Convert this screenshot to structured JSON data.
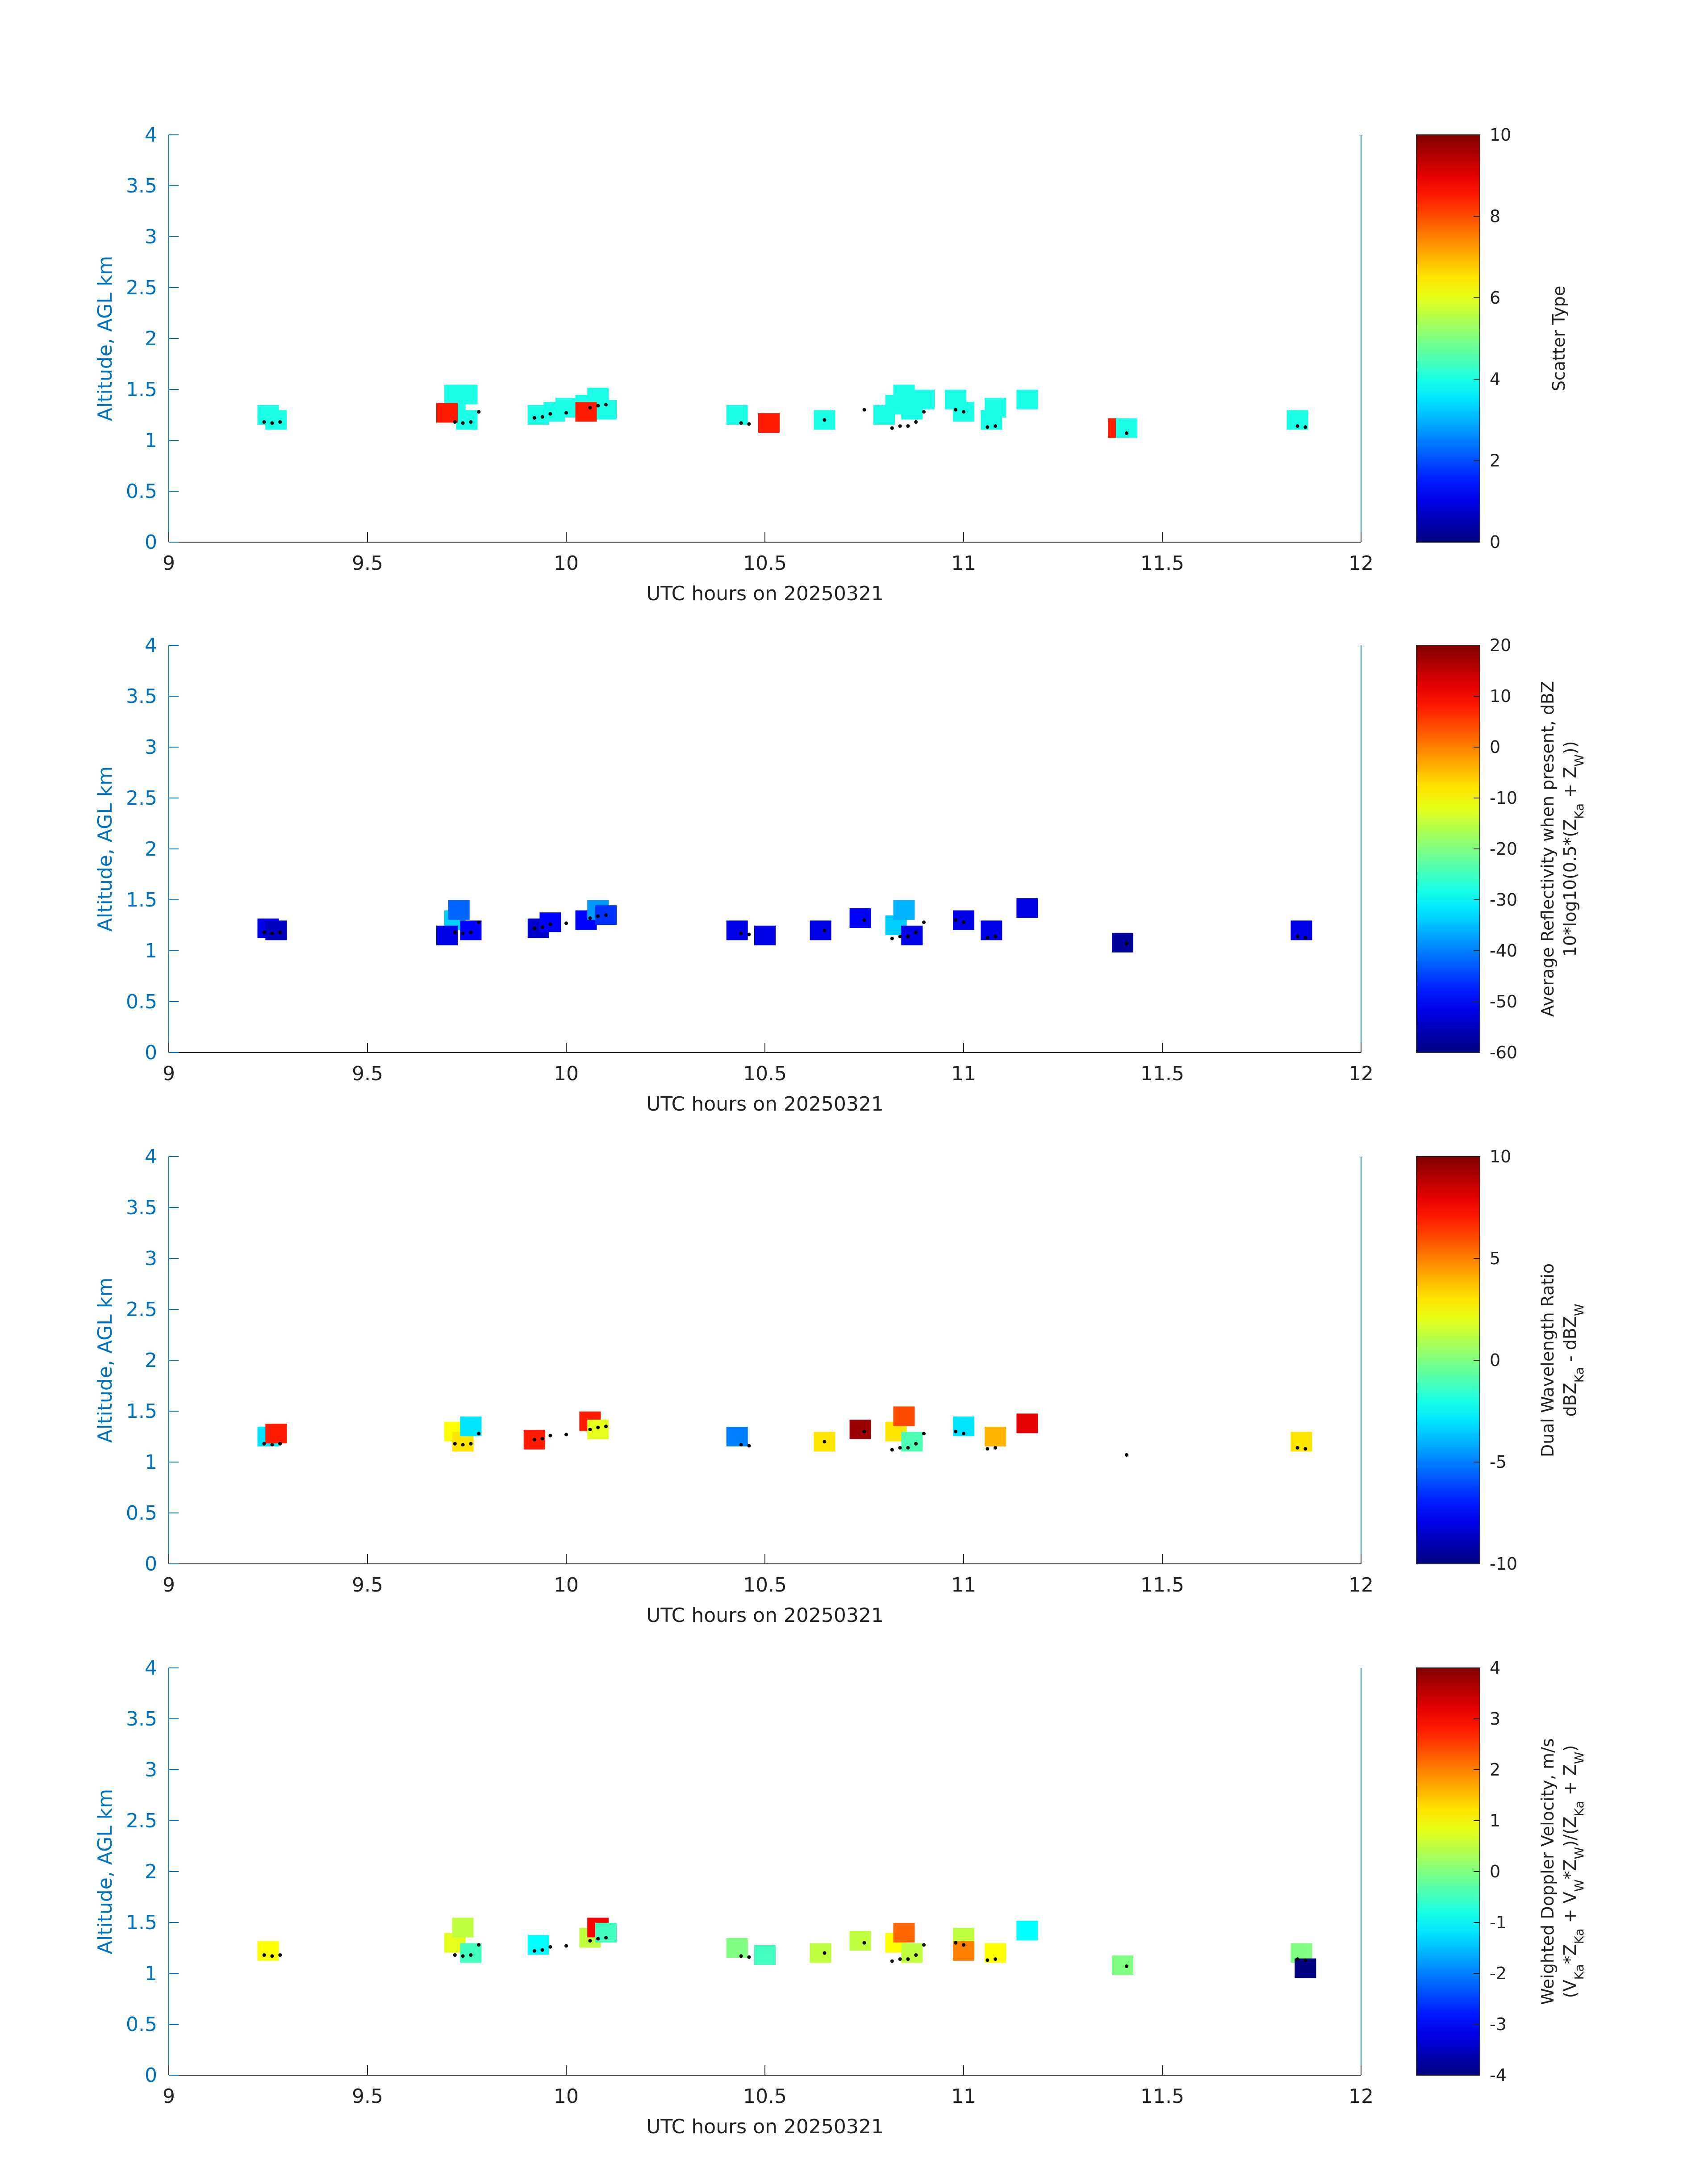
{
  "chart_data": [
    {
      "type": "heatmap",
      "xlabel": "UTC hours on 20250321",
      "ylabel": "Altitude, AGL km",
      "xlim": [
        9,
        12
      ],
      "ylim": [
        0,
        4
      ],
      "xticks": [
        "9",
        "9.5",
        "10",
        "10.5",
        "11",
        "11.5",
        "12"
      ],
      "yticks": [
        "0",
        "0.5",
        "1",
        "1.5",
        "2",
        "2.5",
        "3",
        "3.5",
        "4"
      ],
      "colorbar": {
        "label_lines": [
          "Scatter Type"
        ],
        "range": [
          0,
          10
        ],
        "ticks": [
          "0",
          "2",
          "4",
          "6",
          "8",
          "10"
        ],
        "colormap": "jet"
      },
      "cells": [
        [
          9.25,
          1.25,
          4
        ],
        [
          9.27,
          1.2,
          4
        ],
        [
          9.72,
          1.45,
          4
        ],
        [
          9.72,
          1.3,
          4
        ],
        [
          9.75,
          1.45,
          4
        ],
        [
          9.75,
          1.2,
          4
        ],
        [
          9.7,
          1.27,
          8.5
        ],
        [
          9.93,
          1.25,
          4
        ],
        [
          9.97,
          1.28,
          4
        ],
        [
          10.0,
          1.32,
          4
        ],
        [
          10.05,
          1.35,
          4
        ],
        [
          10.08,
          1.42,
          4
        ],
        [
          10.1,
          1.3,
          4
        ],
        [
          10.05,
          1.28,
          8.5
        ],
        [
          10.43,
          1.25,
          4
        ],
        [
          10.51,
          1.17,
          8.5
        ],
        [
          10.65,
          1.2,
          4
        ],
        [
          10.8,
          1.25,
          4
        ],
        [
          10.83,
          1.35,
          4
        ],
        [
          10.85,
          1.45,
          4
        ],
        [
          10.87,
          1.3,
          4
        ],
        [
          10.9,
          1.4,
          4
        ],
        [
          10.98,
          1.4,
          4
        ],
        [
          11.0,
          1.28,
          4
        ],
        [
          11.07,
          1.2,
          4
        ],
        [
          11.08,
          1.32,
          4
        ],
        [
          11.16,
          1.4,
          4
        ],
        [
          11.39,
          1.12,
          8.5
        ],
        [
          11.41,
          1.12,
          4
        ],
        [
          11.84,
          1.2,
          4
        ]
      ],
      "annotations": "black dot markers near 1.1–1.4 km"
    },
    {
      "type": "heatmap",
      "xlabel": "UTC hours on 20250321",
      "ylabel": "Altitude, AGL km",
      "xlim": [
        9,
        12
      ],
      "ylim": [
        0,
        4
      ],
      "xticks": [
        "9",
        "9.5",
        "10",
        "10.5",
        "11",
        "11.5",
        "12"
      ],
      "yticks": [
        "0",
        "0.5",
        "1",
        "1.5",
        "2",
        "2.5",
        "3",
        "3.5",
        "4"
      ],
      "colorbar": {
        "label_lines": [
          "Average Reflectivity when present, dBZ",
          "10*log10(0.5*(Z_Ka + Z_W))"
        ],
        "range": [
          -60,
          20
        ],
        "ticks": [
          "-60",
          "-50",
          "-40",
          "-30",
          "-20",
          "-10",
          "0",
          "10",
          "20"
        ],
        "colormap": "jet"
      },
      "cells": [
        [
          9.25,
          1.22,
          -52
        ],
        [
          9.27,
          1.2,
          -55
        ],
        [
          9.72,
          1.3,
          -34
        ],
        [
          9.73,
          1.4,
          -42
        ],
        [
          9.7,
          1.15,
          -52
        ],
        [
          9.76,
          1.2,
          -50
        ],
        [
          9.93,
          1.22,
          -54
        ],
        [
          9.96,
          1.28,
          -50
        ],
        [
          10.05,
          1.3,
          -50
        ],
        [
          10.08,
          1.4,
          -38
        ],
        [
          10.1,
          1.35,
          -46
        ],
        [
          10.43,
          1.2,
          -52
        ],
        [
          10.5,
          1.15,
          -52
        ],
        [
          10.64,
          1.2,
          -52
        ],
        [
          10.74,
          1.32,
          -50
        ],
        [
          10.83,
          1.25,
          -34
        ],
        [
          10.85,
          1.4,
          -36
        ],
        [
          10.87,
          1.15,
          -52
        ],
        [
          11.0,
          1.3,
          -52
        ],
        [
          11.07,
          1.2,
          -52
        ],
        [
          11.16,
          1.42,
          -52
        ],
        [
          11.4,
          1.08,
          -58
        ],
        [
          11.85,
          1.2,
          -52
        ]
      ],
      "annotations": "black dot markers near 1.1–1.4 km"
    },
    {
      "type": "heatmap",
      "xlabel": "UTC hours on 20250321",
      "ylabel": "Altitude, AGL km",
      "xlim": [
        9,
        12
      ],
      "ylim": [
        0,
        4
      ],
      "xticks": [
        "9",
        "9.5",
        "10",
        "10.5",
        "11",
        "11.5",
        "12"
      ],
      "yticks": [
        "0",
        "0.5",
        "1",
        "1.5",
        "2",
        "2.5",
        "3",
        "3.5",
        "4"
      ],
      "colorbar": {
        "label_lines": [
          "Dual Wavelength Ratio",
          "dBZ_Ka - dBZ_W"
        ],
        "range": [
          -10,
          10
        ],
        "ticks": [
          "-10",
          "-5",
          "0",
          "5",
          "10"
        ],
        "colormap": "jet"
      },
      "cells": [
        [
          9.25,
          1.25,
          -3
        ],
        [
          9.27,
          1.28,
          7
        ],
        [
          9.72,
          1.3,
          2.5
        ],
        [
          9.74,
          1.2,
          3
        ],
        [
          9.76,
          1.35,
          -3
        ],
        [
          9.92,
          1.22,
          7
        ],
        [
          10.06,
          1.4,
          7
        ],
        [
          10.08,
          1.32,
          2
        ],
        [
          10.43,
          1.25,
          -5
        ],
        [
          10.65,
          1.2,
          3
        ],
        [
          10.74,
          1.32,
          9.5
        ],
        [
          10.83,
          1.3,
          3
        ],
        [
          10.85,
          1.45,
          6
        ],
        [
          10.87,
          1.2,
          -1
        ],
        [
          11.0,
          1.35,
          -3
        ],
        [
          11.08,
          1.25,
          4
        ],
        [
          11.16,
          1.38,
          8
        ],
        [
          11.85,
          1.2,
          3
        ]
      ],
      "annotations": "black dot markers near 1.1–1.4 km"
    },
    {
      "type": "heatmap",
      "xlabel": "UTC hours on 20250321",
      "ylabel": "Altitude, AGL km",
      "xlim": [
        9,
        12
      ],
      "ylim": [
        0,
        4
      ],
      "xticks": [
        "9",
        "9.5",
        "10",
        "10.5",
        "11",
        "11.5",
        "12"
      ],
      "yticks": [
        "0",
        "0.5",
        "1",
        "1.5",
        "2",
        "2.5",
        "3",
        "3.5",
        "4"
      ],
      "colorbar": {
        "label_lines": [
          "Weighted Doppler Velocity, m/s",
          "(V_Ka*Z_Ka + V_W*Z_W)/(Z_Ka + Z_W)"
        ],
        "range": [
          -4,
          4
        ],
        "ticks": [
          "-4",
          "-3",
          "-2",
          "-1",
          "0",
          "1",
          "2",
          "3",
          "4"
        ],
        "colormap": "jet"
      },
      "cells": [
        [
          9.25,
          1.22,
          1
        ],
        [
          9.72,
          1.3,
          0.8
        ],
        [
          9.74,
          1.45,
          0.5
        ],
        [
          9.76,
          1.2,
          -0.5
        ],
        [
          9.93,
          1.28,
          -1
        ],
        [
          10.06,
          1.35,
          0.5
        ],
        [
          10.08,
          1.45,
          3
        ],
        [
          10.1,
          1.4,
          -0.5
        ],
        [
          10.43,
          1.25,
          0
        ],
        [
          10.5,
          1.18,
          -0.5
        ],
        [
          10.64,
          1.2,
          0.5
        ],
        [
          10.74,
          1.32,
          0.5
        ],
        [
          10.83,
          1.3,
          1
        ],
        [
          10.85,
          1.4,
          2.2
        ],
        [
          10.87,
          1.2,
          0.5
        ],
        [
          11.0,
          1.35,
          0.5
        ],
        [
          11.0,
          1.22,
          2
        ],
        [
          11.08,
          1.2,
          1
        ],
        [
          11.16,
          1.42,
          -1
        ],
        [
          11.4,
          1.08,
          0
        ],
        [
          11.85,
          1.2,
          0
        ],
        [
          11.86,
          1.05,
          -4
        ]
      ],
      "annotations": "black dot markers near 1.1–1.4 km"
    }
  ],
  "colors": {
    "axis_blue": "#0072BD",
    "text": "#222222",
    "marker": "#000000"
  }
}
